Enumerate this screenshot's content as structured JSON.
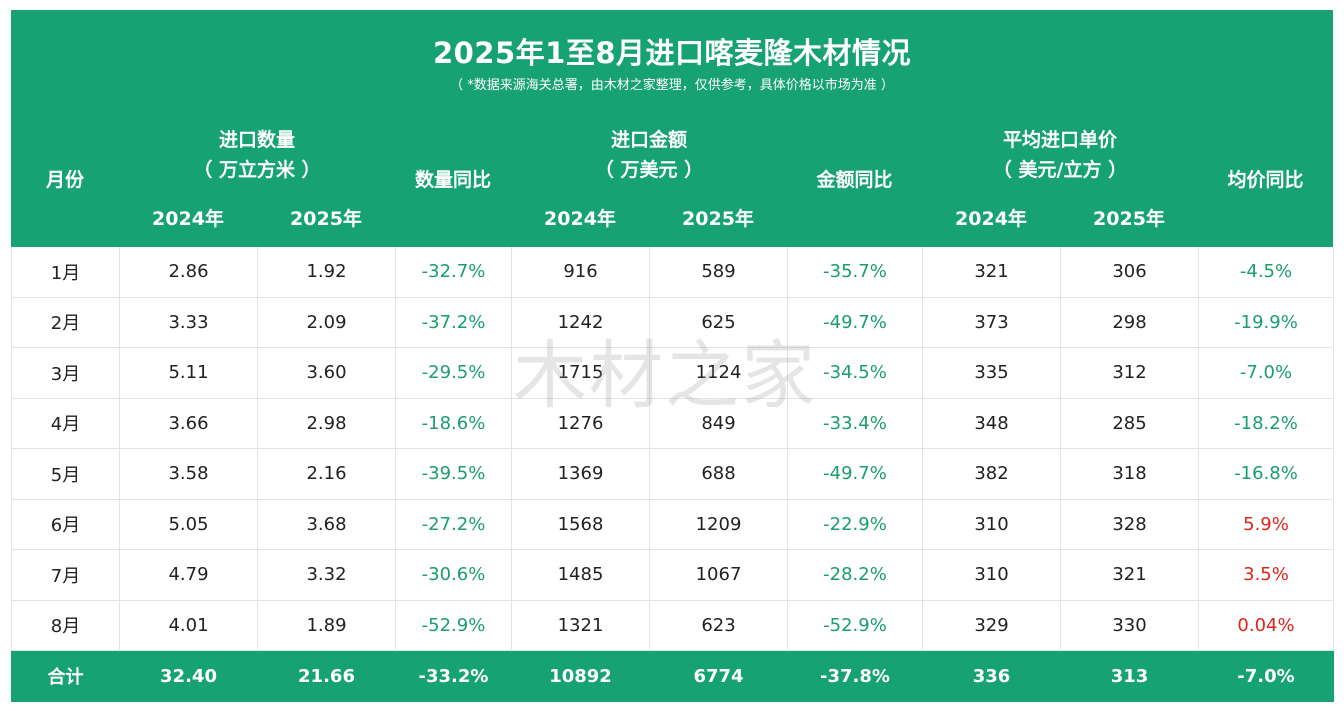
{
  "title": "2025年1至8月进口喀麦隆木材情况",
  "subtitle": "（ *数据来源海关总署，由木材之家整理，仅供参考，具体价格以市场为准 ）",
  "headers": {
    "month": "月份",
    "qty_title": "进口数量",
    "qty_unit": "（ 万立方米 ）",
    "qty_yoy": "数量同比",
    "amt_title": "进口金额",
    "amt_unit": "（ 万美元 ）",
    "amt_yoy": "金额同比",
    "price_title": "平均进口单价",
    "price_unit": "（ 美元/立方 ）",
    "price_yoy": "均价同比",
    "y2024": "2024年",
    "y2025": "2025年"
  },
  "rows": [
    {
      "month": "1月",
      "q24": "2.86",
      "q25": "1.92",
      "qy": "-32.7%",
      "a24": "916",
      "a25": "589",
      "ay": "-35.7%",
      "p24": "321",
      "p25": "306",
      "py": "-4.5%"
    },
    {
      "month": "2月",
      "q24": "3.33",
      "q25": "2.09",
      "qy": "-37.2%",
      "a24": "1242",
      "a25": "625",
      "ay": "-49.7%",
      "p24": "373",
      "p25": "298",
      "py": "-19.9%"
    },
    {
      "month": "3月",
      "q24": "5.11",
      "q25": "3.60",
      "qy": "-29.5%",
      "a24": "1715",
      "a25": "1124",
      "ay": "-34.5%",
      "p24": "335",
      "p25": "312",
      "py": "-7.0%"
    },
    {
      "month": "4月",
      "q24": "3.66",
      "q25": "2.98",
      "qy": "-18.6%",
      "a24": "1276",
      "a25": "849",
      "ay": "-33.4%",
      "p24": "348",
      "p25": "285",
      "py": "-18.2%"
    },
    {
      "month": "5月",
      "q24": "3.58",
      "q25": "2.16",
      "qy": "-39.5%",
      "a24": "1369",
      "a25": "688",
      "ay": "-49.7%",
      "p24": "382",
      "p25": "318",
      "py": "-16.8%"
    },
    {
      "month": "6月",
      "q24": "5.05",
      "q25": "3.68",
      "qy": "-27.2%",
      "a24": "1568",
      "a25": "1209",
      "ay": "-22.9%",
      "p24": "310",
      "p25": "328",
      "py": "5.9%"
    },
    {
      "month": "7月",
      "q24": "4.79",
      "q25": "3.32",
      "qy": "-30.6%",
      "a24": "1485",
      "a25": "1067",
      "ay": "-28.2%",
      "p24": "310",
      "p25": "321",
      "py": "3.5%"
    },
    {
      "month": "8月",
      "q24": "4.01",
      "q25": "1.89",
      "qy": "-52.9%",
      "a24": "1321",
      "a25": "623",
      "ay": "-52.9%",
      "p24": "329",
      "p25": "330",
      "py": "0.04%"
    }
  ],
  "total": {
    "month": "合计",
    "q24": "32.40",
    "q25": "21.66",
    "qy": "-33.2%",
    "a24": "10892",
    "a25": "6774",
    "ay": "-37.8%",
    "p24": "336",
    "p25": "313",
    "py": "-7.0%"
  },
  "watermark": "木材之家",
  "colors": {
    "header_bg": "#17a273",
    "negative": "#1a9e6c",
    "positive": "#e0241b"
  }
}
